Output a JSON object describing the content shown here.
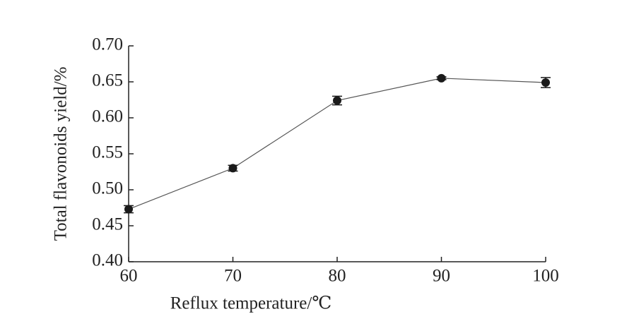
{
  "chart_data": {
    "type": "line",
    "xlabel": "Reflux temperature/℃",
    "ylabel": "Total flavonoids yield/%",
    "x": [
      60,
      70,
      80,
      90,
      100
    ],
    "values": [
      0.473,
      0.53,
      0.624,
      0.655,
      0.649
    ],
    "errors": [
      0.005,
      0.004,
      0.006,
      0.002,
      0.007
    ],
    "color": "#1a1a1a",
    "xlim": [
      60,
      100
    ],
    "xticks": [
      60,
      70,
      80,
      90,
      100
    ],
    "ylim": [
      0.4,
      0.7
    ],
    "yticks": [
      {
        "value": 0.4,
        "label": "0.40"
      },
      {
        "value": 0.45,
        "label": "0.45"
      },
      {
        "value": 0.5,
        "label": "0.50"
      },
      {
        "value": 0.55,
        "label": "0.55"
      },
      {
        "value": 0.6,
        "label": "0.60"
      },
      {
        "value": 0.65,
        "label": "0.65"
      },
      {
        "value": 0.7,
        "label": "0.70"
      }
    ],
    "grid": false
  }
}
